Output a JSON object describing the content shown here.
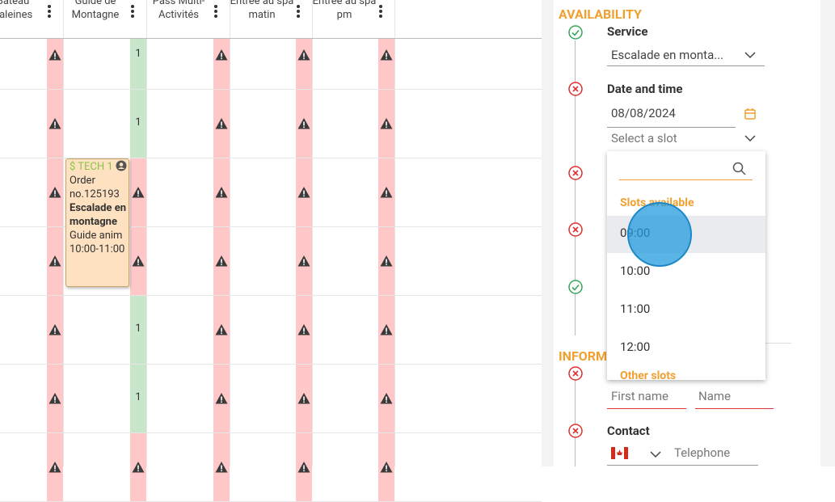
{
  "schedule": {
    "columns": [
      "Bateau baleines",
      "Guide de Montagne",
      "Pass Multi-Activités",
      "Entrée au spa matin",
      "Entrée au spa pm"
    ],
    "rows": [
      {
        "guide_status": "available",
        "guide_count": "1"
      },
      {
        "guide_status": "available",
        "guide_count": "1"
      },
      {
        "guide_status": "unavailable"
      },
      {
        "guide_status": "unavailable"
      },
      {
        "guide_status": "available",
        "guide_count": "1"
      },
      {
        "guide_status": "available",
        "guide_count": "1"
      },
      {
        "guide_status": "unavailable"
      }
    ]
  },
  "booking_card": {
    "tag": "$ TECH 1",
    "order": "Order no.125193",
    "activity": "Escalade en montagne",
    "resource": "Guide anim",
    "time": "10:00-11:00"
  },
  "availability": {
    "title": "AVAILABILITY",
    "service_label": "Service",
    "service_value": "Escalade en monta...",
    "date_label": "Date and time",
    "date_value": "08/08/2024",
    "slot_placeholder": "Select a slot",
    "slots_header": "Slots available",
    "slots": [
      "09:00",
      "10:00",
      "11:00",
      "12:00"
    ],
    "other_slots_header": "Other slots"
  },
  "information": {
    "title": "INFORM",
    "first_name_placeholder": "First name",
    "name_placeholder": "Name",
    "contact_label": "Contact",
    "telephone_placeholder": "Telephone"
  }
}
